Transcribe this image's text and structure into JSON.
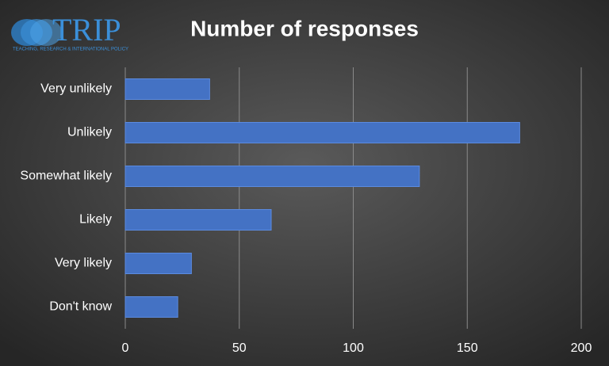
{
  "logo": {
    "name": "TRIP",
    "tagline": "TEACHING, RESEARCH & INTERNATIONAL POLICY"
  },
  "chart_data": {
    "type": "bar",
    "orientation": "horizontal",
    "title": "Number of responses",
    "categories": [
      "Very unlikely",
      "Unlikely",
      "Somewhat likely",
      "Likely",
      "Very likely",
      "Don't know"
    ],
    "values": [
      37,
      173,
      129,
      64,
      29,
      23
    ],
    "color": "#4472c4",
    "xlim": [
      0,
      200
    ],
    "xticks": [
      0,
      50,
      100,
      150,
      200
    ],
    "grid": true
  }
}
